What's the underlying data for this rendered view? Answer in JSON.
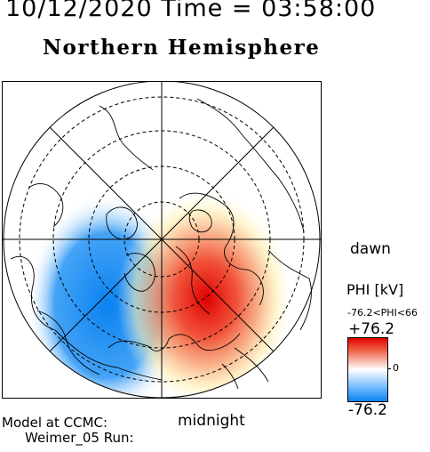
{
  "header": {
    "date_time": "10/12/2020 Time = 03:58:00",
    "hemisphere": "Northern Hemisphere"
  },
  "map": {
    "orientation": {
      "dawn": "dawn",
      "midnight": "midnight"
    },
    "projection": "polar",
    "min_latitude_boundary": 45,
    "latitude_circles_dashed": [
      50,
      60,
      70,
      80
    ],
    "coastlines": "black"
  },
  "colorbar": {
    "title": "PHI [kV]",
    "range_text": "-76.2<PHI<66",
    "max_label": "+76.2",
    "min_label": "-76.2",
    "zero_label": "0",
    "colors": {
      "max": "#e00000",
      "zero": "#ffffff",
      "min": "#0a82f0"
    }
  },
  "footer": {
    "model_line": "Model at CCMC:",
    "run_line": "Weimer_05 Run:"
  }
}
